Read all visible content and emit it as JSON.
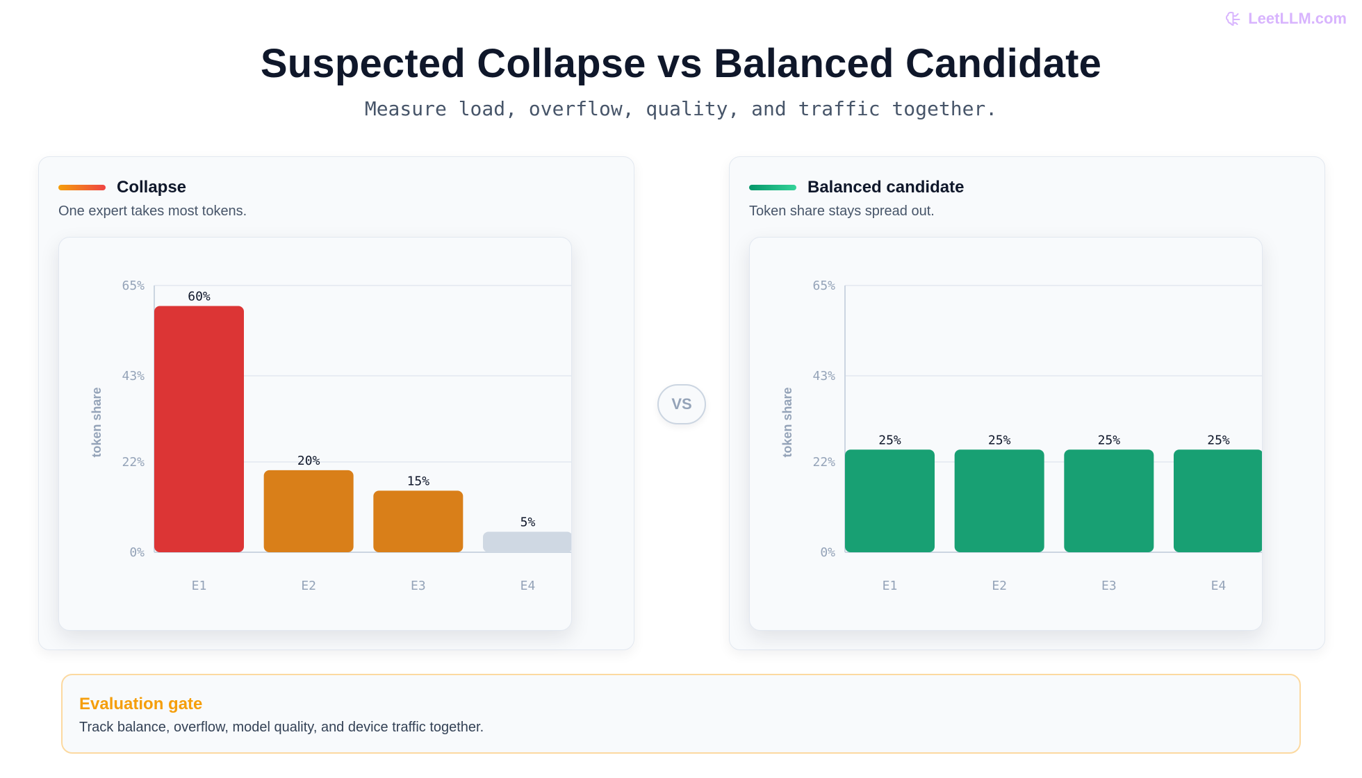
{
  "brand": {
    "text": "LeetLLM.com",
    "icon": "brain-icon"
  },
  "title": "Suspected Collapse vs Balanced Candidate",
  "subtitle": "Measure load, overflow, quality, and traffic together.",
  "vs_label": "VS",
  "panels": [
    {
      "title": "Collapse",
      "subtitle": "One expert takes most tokens.",
      "accent": [
        "#f59e0b",
        "#ef4444"
      ]
    },
    {
      "title": "Balanced candidate",
      "subtitle": "Token share stays spread out.",
      "accent": [
        "#059669",
        "#34d399"
      ]
    }
  ],
  "gate": {
    "title": "Evaluation gate",
    "text": "Track balance, overflow, model quality, and device traffic together."
  },
  "chart_data": [
    {
      "type": "bar",
      "categories": [
        "E1",
        "E2",
        "E3",
        "E4"
      ],
      "values": [
        60,
        20,
        15,
        5
      ],
      "data_labels": [
        "60%",
        "20%",
        "15%",
        "5%"
      ],
      "colors": [
        "#dc3535",
        "#d97f19",
        "#d97f19",
        "#cfd8e3"
      ],
      "ylabel": "token share",
      "ylim": [
        0,
        65
      ],
      "yticks": [
        0,
        22,
        43,
        65
      ],
      "ytick_labels": [
        "0%",
        "22%",
        "43%",
        "65%"
      ],
      "grid": true
    },
    {
      "type": "bar",
      "categories": [
        "E1",
        "E2",
        "E3",
        "E4"
      ],
      "values": [
        25,
        25,
        25,
        25
      ],
      "data_labels": [
        "25%",
        "25%",
        "25%",
        "25%"
      ],
      "colors": [
        "#18a073",
        "#18a073",
        "#18a073",
        "#18a073"
      ],
      "ylabel": "token share",
      "ylim": [
        0,
        65
      ],
      "yticks": [
        0,
        22,
        43,
        65
      ],
      "ytick_labels": [
        "0%",
        "22%",
        "43%",
        "65%"
      ],
      "grid": true
    }
  ]
}
